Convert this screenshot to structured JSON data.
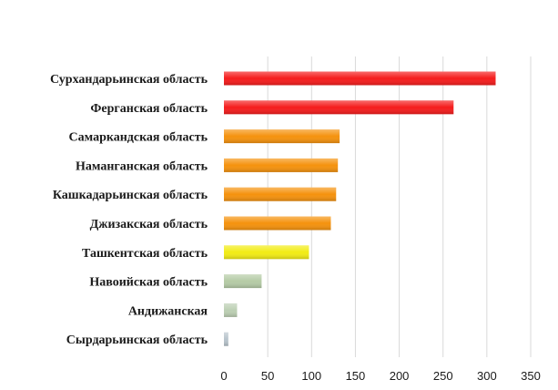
{
  "chart_data": {
    "type": "bar",
    "orientation": "horizontal",
    "title": "",
    "xlabel": "",
    "ylabel": "",
    "categories": [
      "Сурхандарьинская область",
      "Ферганская область",
      "Самаркандская область",
      "Наманганская область",
      "Кашкадарьинская область",
      "Джизакская область",
      "Ташкентская область",
      "Навоийская область",
      "Андижанская",
      "Сырдарьинская область"
    ],
    "values": [
      310,
      262,
      132,
      130,
      128,
      122,
      97,
      43,
      15,
      5
    ],
    "colors": [
      "#f51c1c",
      "#f51c1c",
      "#f5920d",
      "#f5920d",
      "#f5920d",
      "#f5920d",
      "#f2ec14",
      "#b5cba6",
      "#bccfb3",
      "#b8c4cc"
    ],
    "xlim": [
      0,
      350
    ],
    "ticks": [
      "0",
      "50",
      "100",
      "150",
      "200",
      "250",
      "300",
      "350"
    ],
    "grid": true,
    "legend": "none"
  }
}
